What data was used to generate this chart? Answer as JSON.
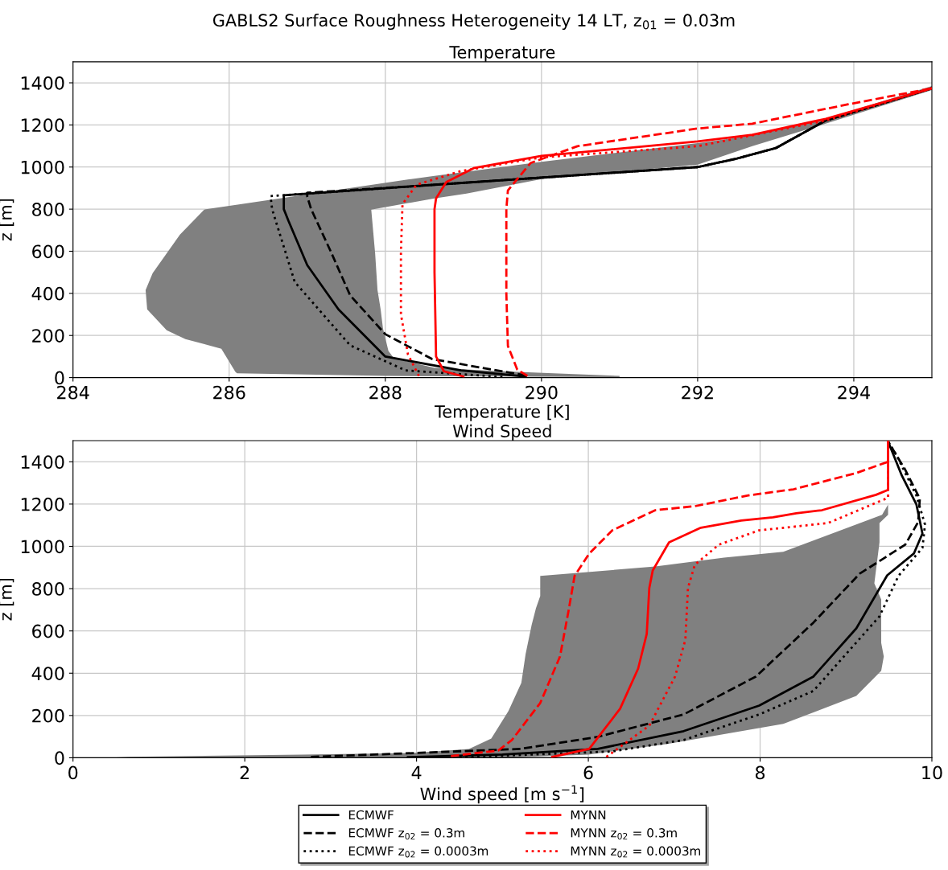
{
  "chart_data": [
    {
      "type": "line",
      "title": "Temperature",
      "xlabel": "Temperature [K]",
      "ylabel": "z [m]",
      "annotations": [
        "GABLS2 Surface Roughness Heterogeneity 14 LT, z$_{01}$ = 0.03m"
      ],
      "xlim": [
        284,
        295
      ],
      "xticks": [
        284,
        286,
        288,
        290,
        292,
        294
      ],
      "ylim": [
        0,
        1500
      ],
      "yticks": [
        0,
        200,
        400,
        600,
        800,
        1000,
        1200,
        1400
      ],
      "grid": true,
      "legend": false,
      "marker": "none",
      "series": [
        {
          "type": "area",
          "color": "#808080",
          "x": [
            286.1,
            286.08,
            285.9,
            285.44,
            285.2,
            284.95,
            284.93,
            285.02,
            285.37,
            285.68,
            288.33,
            288.63,
            290.0,
            292.0,
            292.7,
            293.64,
            295.0,
            295.0,
            293.64,
            292.7,
            292.0,
            290.0,
            289.04,
            288.63,
            287.82,
            287.87,
            287.9,
            287.94,
            287.97,
            288.04,
            288.11,
            288.63,
            289.5,
            291.0,
            291.0,
            288.0
          ],
          "values": [
            20,
            27,
            137,
            183,
            225,
            324,
            416,
            496,
            679,
            798,
            943,
            958,
            1025,
            1114,
            1150,
            1229,
            1385,
            1366,
            1206,
            1099,
            1011,
            943,
            874,
            851,
            798,
            588,
            416,
            324,
            233,
            126,
            92,
            46,
            30,
            8,
            2,
            8
          ]
        },
        {
          "color": "#000000",
          "line_style": "solid",
          "x": [
            289.8,
            288.97,
            288.0,
            287.4,
            287.0,
            286.76,
            286.7,
            286.7,
            288.6,
            290.0,
            291.0,
            292.0,
            292.5,
            293.0,
            293.64,
            294.3,
            295.0
          ],
          "values": [
            5,
            34,
            100,
            324,
            534,
            744,
            800,
            866,
            915,
            950,
            975,
            1000,
            1040,
            1090,
            1221,
            1295,
            1374
          ]
        },
        {
          "color": "#000000",
          "line_style": "dashed",
          "x": [
            289.8,
            288.6,
            288.0,
            287.55,
            287.3,
            287.05,
            287.0,
            287.0,
            288.6,
            290.0,
            291.0,
            292.0,
            292.5,
            293.0,
            293.64,
            294.3,
            295.0
          ],
          "values": [
            10,
            88,
            206,
            390,
            600,
            800,
            860,
            878,
            915,
            950,
            975,
            1000,
            1040,
            1090,
            1221,
            1295,
            1374
          ]
        },
        {
          "color": "#000000",
          "line_style": "dotted",
          "x": [
            289.5,
            288.26,
            287.55,
            286.84,
            286.55,
            286.53,
            286.7,
            288.6,
            290.0,
            291.0,
            292.0,
            292.5,
            293.0,
            293.64,
            294.3,
            295.0
          ],
          "values": [
            3,
            34,
            153,
            454,
            800,
            862,
            866,
            915,
            950,
            975,
            1000,
            1040,
            1090,
            1221,
            1295,
            1374
          ]
        },
        {
          "color": "#ff0000",
          "line_style": "solid",
          "x": [
            289.0,
            288.75,
            288.65,
            288.63,
            288.63,
            288.65,
            288.78,
            289.14,
            290.0,
            292.0,
            292.7,
            293.64,
            295.0
          ],
          "values": [
            5,
            30,
            100,
            500,
            800,
            851,
            928,
            996,
            1053,
            1122,
            1153,
            1229,
            1374
          ]
        },
        {
          "color": "#ff0000",
          "line_style": "dashed",
          "x": [
            289.82,
            289.69,
            289.57,
            289.55,
            289.55,
            289.57,
            289.86,
            290.46,
            292.0,
            292.7,
            293.93,
            295.0
          ],
          "values": [
            8,
            38,
            150,
            400,
            800,
            889,
            1019,
            1099,
            1183,
            1206,
            1298,
            1374
          ]
        },
        {
          "color": "#ff0000",
          "line_style": "dotted",
          "x": [
            288.43,
            288.29,
            288.2,
            288.2,
            288.22,
            288.4,
            288.97,
            290.0,
            292.0,
            293.64,
            295.0
          ],
          "values": [
            8,
            110,
            300,
            600,
            824,
            916,
            981,
            1046,
            1099,
            1221,
            1374
          ]
        }
      ]
    },
    {
      "type": "line",
      "title": "Wind Speed",
      "xlabel": "Wind speed [m s$^{−1}$]",
      "ylabel": "z [m]",
      "xlim": [
        0,
        10
      ],
      "xticks": [
        0,
        2,
        4,
        6,
        8,
        10
      ],
      "ylim": [
        0,
        1500
      ],
      "yticks": [
        0,
        200,
        400,
        600,
        800,
        1000,
        1200,
        1400
      ],
      "grid": true,
      "legend": "bottom",
      "marker": "none",
      "series": [
        {
          "type": "area",
          "color": "#808080",
          "x": [
            5.44,
            5.44,
            5.39,
            5.34,
            5.27,
            5.22,
            5.07,
            4.87,
            4.61,
            3.97,
            2.67,
            0.66,
            0.45,
            0.45,
            5.0,
            6.0,
            6.92,
            8.27,
            9.12,
            9.41,
            9.44,
            9.41,
            9.41,
            9.33,
            9.39,
            9.39,
            9.49,
            9.49,
            9.42,
            8.27,
            7.58,
            6.78
          ],
          "values": [
            860,
            765,
            707,
            628,
            491,
            354,
            221,
            91,
            42,
            23,
            15,
            4,
            1,
            0,
            0,
            15,
            65,
            160,
            293,
            411,
            479,
            544,
            749,
            825,
            1019,
            1110,
            1149,
            1198,
            1149,
            974,
            947,
            905
          ]
        },
        {
          "name": "ECMWF",
          "color": "#000000",
          "line_style": "solid",
          "x": [
            3.9,
            5.0,
            6.11,
            7.11,
            7.99,
            8.62,
            9.12,
            9.48,
            9.79,
            9.89,
            9.82,
            9.65,
            9.49
          ],
          "values": [
            3,
            15,
            42,
            126,
            247,
            384,
            612,
            863,
            966,
            1061,
            1198,
            1335,
            1496
          ]
        },
        {
          "name": "ECMWF z$_{02}$ = 0.3m",
          "color": "#000000",
          "line_style": "dashed",
          "x": [
            2.77,
            4.01,
            5.21,
            6.11,
            7.11,
            7.95,
            8.62,
            9.16,
            9.69,
            9.84,
            9.86,
            9.69,
            9.49
          ],
          "values": [
            4,
            23,
            42,
            99,
            205,
            384,
            639,
            871,
            1008,
            1115,
            1225,
            1362,
            1496
          ]
        },
        {
          "name": "ECMWF z$_{02}$ = 0.0003m",
          "color": "#000000",
          "line_style": "dotted",
          "x": [
            4.5,
            6.28,
            7.11,
            7.99,
            8.62,
            9.39,
            9.61,
            9.89,
            9.92,
            9.82,
            9.59,
            9.49
          ],
          "values": [
            2,
            30,
            84,
            205,
            316,
            669,
            860,
            993,
            1103,
            1240,
            1430,
            1496
          ]
        },
        {
          "name": "MYNN",
          "color": "#ff0000",
          "line_style": "solid",
          "x": [
            5.58,
            6.01,
            6.37,
            6.58,
            6.68,
            6.71,
            6.75,
            6.94,
            7.31,
            7.78,
            8.15,
            8.42,
            8.72,
            9.35,
            9.49,
            9.49
          ],
          "values": [
            4,
            42,
            232,
            422,
            586,
            803,
            886,
            1019,
            1088,
            1122,
            1137,
            1156,
            1171,
            1244,
            1267,
            1500
          ]
        },
        {
          "name": "MYNN z$_{02}$ = 0.3m",
          "color": "#ff0000",
          "line_style": "dashed",
          "x": [
            4.4,
            4.95,
            5.11,
            5.44,
            5.67,
            5.77,
            5.84,
            6.01,
            6.28,
            6.78,
            7.24,
            7.85,
            8.39,
            9.12,
            9.49,
            9.49
          ],
          "values": [
            8,
            34,
            84,
            259,
            479,
            696,
            860,
            966,
            1076,
            1171,
            1190,
            1240,
            1270,
            1347,
            1400,
            1500
          ]
        },
        {
          "name": "MYNN z$_{02}$ = 0.0003m",
          "color": "#ff0000",
          "line_style": "dotted",
          "x": [
            6.21,
            6.71,
            7.01,
            7.13,
            7.16,
            7.24,
            7.52,
            7.99,
            8.79,
            9.49,
            9.49
          ],
          "values": [
            4,
            152,
            384,
            559,
            803,
            913,
            1008,
            1076,
            1110,
            1230,
            1500
          ]
        }
      ]
    }
  ]
}
